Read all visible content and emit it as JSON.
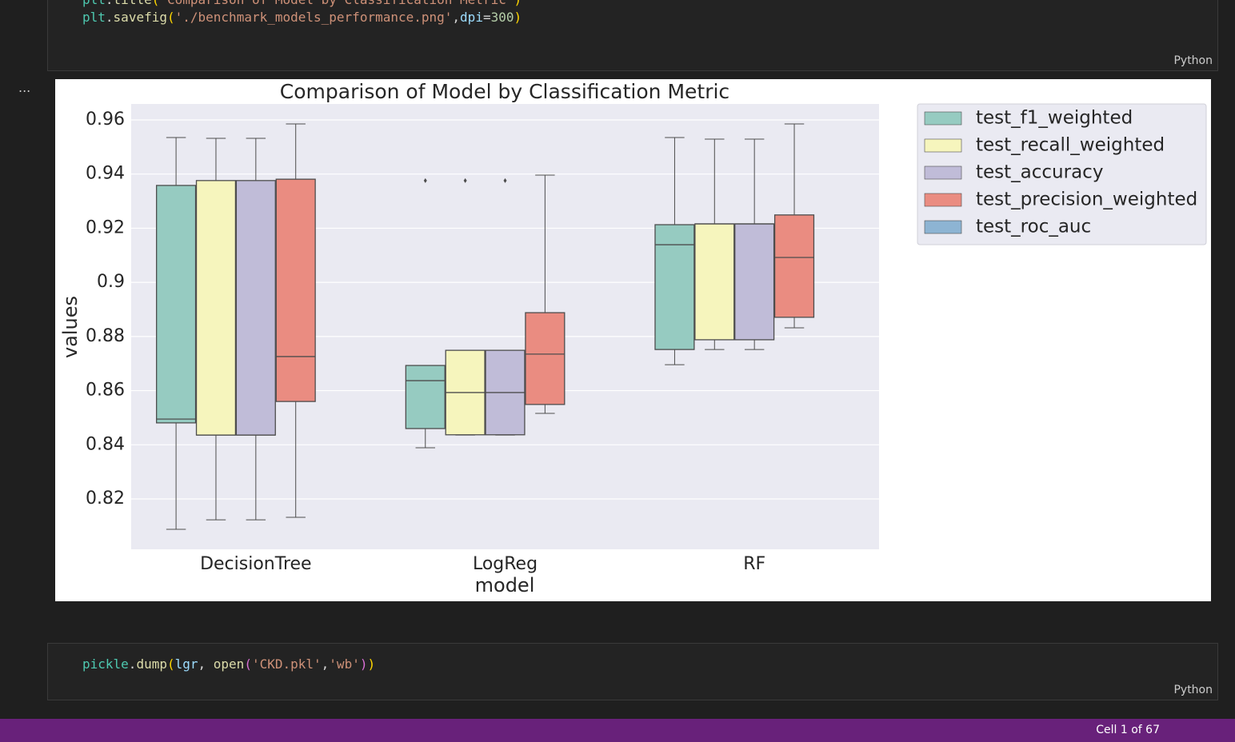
{
  "cells": [
    {
      "lines": [
        [
          {
            "text": "plt",
            "color": "#4ec9b0"
          },
          {
            "text": ".",
            "color": "#d4d4d4"
          },
          {
            "text": "title",
            "color": "#dcdcaa"
          },
          {
            "text": "(",
            "color": "#ffd700"
          },
          {
            "text": "'Comparison of Model by Classification Metric'",
            "color": "#ce9178"
          },
          {
            "text": ")",
            "color": "#ffd700"
          }
        ],
        [
          {
            "text": "plt",
            "color": "#4ec9b0"
          },
          {
            "text": ".",
            "color": "#d4d4d4"
          },
          {
            "text": "savefig",
            "color": "#dcdcaa"
          },
          {
            "text": "(",
            "color": "#ffd700"
          },
          {
            "text": "'./benchmark_models_performance.png'",
            "color": "#ce9178"
          },
          {
            "text": ",",
            "color": "#d4d4d4"
          },
          {
            "text": "dpi",
            "color": "#9cdcfe"
          },
          {
            "text": "=",
            "color": "#d4d4d4"
          },
          {
            "text": "300",
            "color": "#b5cea8"
          },
          {
            "text": ")",
            "color": "#ffd700"
          }
        ]
      ],
      "language": "Python"
    },
    {
      "lines": [
        [
          {
            "text": "pickle",
            "color": "#4ec9b0"
          },
          {
            "text": ".",
            "color": "#d4d4d4"
          },
          {
            "text": "dump",
            "color": "#dcdcaa"
          },
          {
            "text": "(",
            "color": "#ffd700"
          },
          {
            "text": "lgr",
            "color": "#9cdcfe"
          },
          {
            "text": ", ",
            "color": "#d4d4d4"
          },
          {
            "text": "open",
            "color": "#dcdcaa"
          },
          {
            "text": "(",
            "color": "#da70d6"
          },
          {
            "text": "'CKD.pkl'",
            "color": "#ce9178"
          },
          {
            "text": ",",
            "color": "#d4d4d4"
          },
          {
            "text": "'wb'",
            "color": "#ce9178"
          },
          {
            "text": ")",
            "color": "#da70d6"
          },
          {
            "text": ")",
            "color": "#ffd700"
          }
        ]
      ],
      "language": "Python"
    }
  ],
  "output_menu": "...",
  "status_bar": {
    "cell_position": "Cell 1 of 67"
  },
  "chart_data": {
    "type": "box",
    "title": "Comparison of Model by Classification Metric",
    "x_label": "model",
    "y_label": "values",
    "categories": [
      "DecisionTree",
      "LogReg",
      "RF"
    ],
    "ylim": [
      0.8014,
      0.9659
    ],
    "yticks": [
      0.82,
      0.84,
      0.86,
      0.88,
      0.9,
      0.92,
      0.94,
      0.96
    ],
    "grid": true,
    "legend": "outside-upper-right",
    "series": [
      {
        "name": "test_f1_weighted",
        "color": "#96cbc1",
        "boxes": [
          {
            "min": 0.8088,
            "q1": 0.8481,
            "median": 0.8495,
            "q3": 0.9358,
            "max": 0.9535,
            "outliers": []
          },
          {
            "min": 0.8389,
            "q1": 0.846,
            "median": 0.8637,
            "q3": 0.8693,
            "max": 0.8693,
            "outliers": [
              0.9376
            ]
          },
          {
            "min": 0.8696,
            "q1": 0.8752,
            "median": 0.9139,
            "q3": 0.9213,
            "max": 0.9535,
            "outliers": []
          }
        ]
      },
      {
        "name": "test_recall_weighted",
        "color": "#f6f5bd",
        "boxes": [
          {
            "min": 0.8123,
            "q1": 0.8436,
            "median": 0.8436,
            "q3": 0.9376,
            "max": 0.9532,
            "outliers": []
          },
          {
            "min": 0.8436,
            "q1": 0.8437,
            "median": 0.8593,
            "q3": 0.8749,
            "max": 0.8749,
            "outliers": [
              0.9376
            ]
          },
          {
            "min": 0.8752,
            "q1": 0.8788,
            "median": 0.9216,
            "q3": 0.9216,
            "max": 0.9529,
            "outliers": []
          }
        ]
      },
      {
        "name": "test_accuracy",
        "color": "#c0bcd8",
        "boxes": [
          {
            "min": 0.8123,
            "q1": 0.8436,
            "median": 0.8436,
            "q3": 0.9376,
            "max": 0.9532,
            "outliers": []
          },
          {
            "min": 0.8436,
            "q1": 0.8437,
            "median": 0.8593,
            "q3": 0.8749,
            "max": 0.8749,
            "outliers": [
              0.9376
            ]
          },
          {
            "min": 0.8752,
            "q1": 0.8788,
            "median": 0.9216,
            "q3": 0.9216,
            "max": 0.9529,
            "outliers": []
          }
        ]
      },
      {
        "name": "test_precision_weighted",
        "color": "#ea8c81",
        "boxes": [
          {
            "min": 0.8132,
            "q1": 0.856,
            "median": 0.8726,
            "q3": 0.9381,
            "max": 0.9585,
            "outliers": []
          },
          {
            "min": 0.8516,
            "q1": 0.8549,
            "median": 0.8735,
            "q3": 0.8888,
            "max": 0.9396,
            "outliers": []
          },
          {
            "min": 0.8832,
            "q1": 0.8871,
            "median": 0.9092,
            "q3": 0.9249,
            "max": 0.9585,
            "outliers": []
          }
        ]
      },
      {
        "name": "test_roc_auc",
        "color": "#8db4d3",
        "boxes": [
          null,
          null,
          null
        ]
      }
    ]
  }
}
